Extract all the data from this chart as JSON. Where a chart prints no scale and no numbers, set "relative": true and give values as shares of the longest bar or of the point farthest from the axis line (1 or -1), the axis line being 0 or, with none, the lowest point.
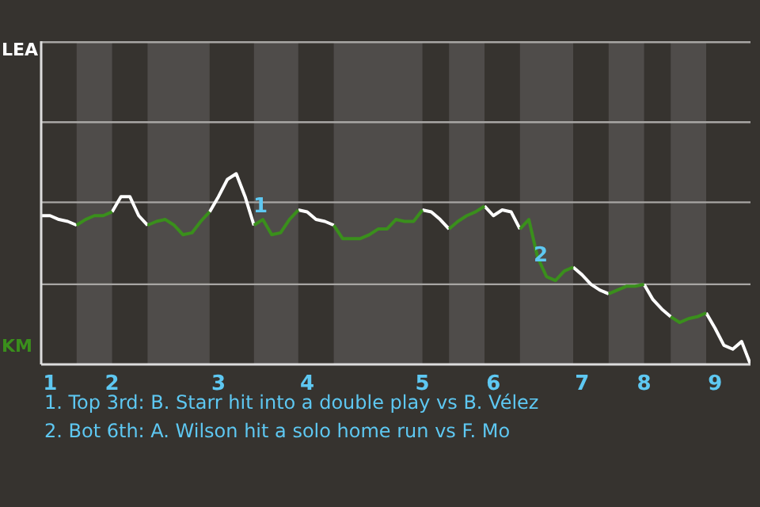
{
  "chart_data": {
    "type": "line",
    "annotations": [
      "1",
      "2",
      "1. Top 3rd: B. Starr hit into a double play vs B. Vélez",
      "2. Bot 6th: A. Wilson hit a solo home run vs F. Mo"
    ],
    "categories": [
      null,
      "1",
      null,
      null,
      null,
      null,
      null,
      null,
      "2",
      null,
      null,
      null,
      null,
      null,
      null,
      null,
      null,
      null,
      null,
      null,
      "3",
      null,
      null,
      null,
      null,
      null,
      null,
      null,
      null,
      null,
      "4",
      null,
      null,
      null,
      null,
      null,
      null,
      null,
      null,
      null,
      null,
      null,
      null,
      "5",
      null,
      null,
      null,
      null,
      null,
      null,
      null,
      "6",
      null,
      null,
      null,
      null,
      null,
      null,
      null,
      null,
      null,
      "7",
      null,
      null,
      null,
      null,
      null,
      null,
      "8",
      null,
      null,
      null,
      null,
      null,
      null,
      null,
      "9",
      null,
      null,
      null,
      null
    ],
    "relative": true,
    "series": [
      {
        "name": "LEA",
        "color": "#ffffff",
        "values": [
          0.78,
          0.78,
          0.76,
          0.75,
          0.73,
          null,
          null,
          null,
          0.8,
          0.88,
          0.88,
          0.78,
          0.73,
          null,
          null,
          null,
          null,
          null,
          null,
          0.8,
          0.88,
          0.97,
          1,
          0.88,
          0.73,
          null,
          null,
          null,
          null,
          0.81,
          0.8,
          0.76,
          0.75,
          0.73,
          null,
          null,
          null,
          null,
          null,
          null,
          null,
          null,
          null,
          0.81,
          0.8,
          0.76,
          0.71,
          null,
          null,
          null,
          0.83,
          0.78,
          0.81,
          0.8,
          0.71,
          null,
          null,
          null,
          null,
          null,
          0.51,
          0.47,
          0.42,
          0.39,
          0.37,
          null,
          null,
          null,
          0.42,
          0.34,
          0.29,
          0.25,
          null,
          null,
          null,
          0.27,
          0.19,
          0.1,
          0.08,
          0.12,
          0
        ]
      },
      {
        "name": "KM",
        "color": "#3a8f1c",
        "values": [
          null,
          null,
          null,
          null,
          0.73,
          0.76,
          0.78,
          0.78,
          0.8,
          null,
          null,
          null,
          0.73,
          0.75,
          0.76,
          0.73,
          0.68,
          0.69,
          0.75,
          0.8,
          null,
          null,
          null,
          null,
          0.73,
          0.76,
          0.68,
          0.69,
          0.76,
          0.81,
          null,
          null,
          null,
          0.73,
          0.66,
          0.66,
          0.66,
          0.68,
          0.71,
          0.71,
          0.76,
          0.75,
          0.75,
          0.81,
          null,
          null,
          0.71,
          0.75,
          0.78,
          0.8,
          0.83,
          null,
          null,
          null,
          0.71,
          0.76,
          0.56,
          0.46,
          0.44,
          0.49,
          0.51,
          null,
          null,
          null,
          0.37,
          0.39,
          0.41,
          0.41,
          0.42,
          null,
          null,
          0.25,
          0.22,
          0.24,
          0.25,
          0.27,
          null,
          null,
          null,
          null,
          null
        ]
      }
    ],
    "tick_labels": "x",
    "ref_lines": [
      {
        "axis": "y",
        "value": 0.42,
        "color": "#a8a6a4"
      },
      {
        "axis": "y",
        "value": 0.85,
        "color": "#a8a6a4"
      },
      {
        "axis": "y",
        "value": 1.27,
        "color": "#a8a6a4"
      },
      {
        "axis": "y",
        "value": 1.69,
        "color": "#a8a6a4"
      }
    ]
  }
}
